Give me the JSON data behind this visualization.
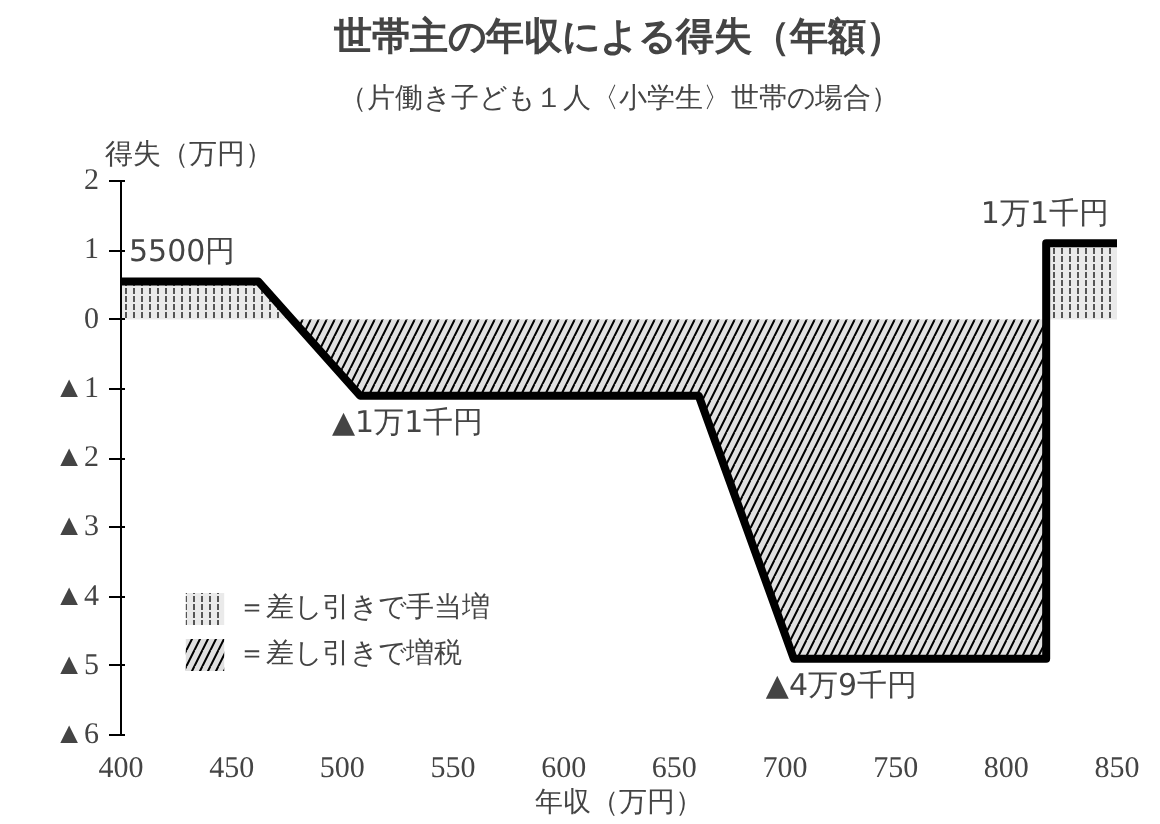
{
  "chart_data": {
    "type": "area",
    "title": "世帯主の年収による得失（年額）",
    "subtitle": "（片働き子ども１人〈小学生〉世帯の場合）",
    "xlabel": "年収（万円）",
    "ylabel": "得失（万円）",
    "xlim": [
      400,
      850
    ],
    "xticks": [
      400,
      450,
      500,
      550,
      600,
      650,
      700,
      750,
      800,
      850
    ],
    "ylim": [
      -6,
      2
    ],
    "yticks": [
      2,
      1,
      0,
      {
        "value": -1,
        "label": "▲1"
      },
      {
        "value": -2,
        "label": "▲2"
      },
      {
        "value": -3,
        "label": "▲3"
      },
      {
        "value": -4,
        "label": "▲4"
      },
      {
        "value": -5,
        "label": "▲5"
      },
      {
        "value": -6,
        "label": "▲6"
      }
    ],
    "grid": false,
    "legend": "bottom left",
    "series": [
      {
        "name": "＝差し引きで手当増",
        "color": "#555555",
        "x": [
          400,
          462,
          476,
          508,
          661,
          704,
          818,
          818,
          850
        ],
        "values": [
          0.55,
          0.55,
          0,
          0,
          0,
          0,
          0,
          1.1,
          1.1
        ]
      },
      {
        "name": "＝差し引きで増税",
        "color": "#000000",
        "x": [
          400,
          462,
          476,
          508,
          661,
          704,
          818,
          818,
          850
        ],
        "values": [
          0,
          0,
          0,
          -1.1,
          -1.1,
          -4.9,
          -4.9,
          0,
          0
        ]
      },
      {
        "type": "line",
        "color": "#000000",
        "x": [
          400,
          462,
          508,
          661,
          704,
          818,
          818,
          850
        ],
        "values": [
          0.55,
          0.55,
          -1.1,
          -1.1,
          -4.9,
          -4.9,
          1.1,
          1.1
        ]
      }
    ],
    "annotations": [
      {
        "text": "5500円",
        "x": 400,
        "y": 0.55
      },
      {
        "text": "▲1万1千円",
        "x": 508,
        "y": -1.1
      },
      {
        "text": "▲4万9千円",
        "x": 704,
        "y": -4.9
      },
      {
        "text": "1万1千円",
        "x": 850,
        "y": 1.1
      }
    ]
  }
}
